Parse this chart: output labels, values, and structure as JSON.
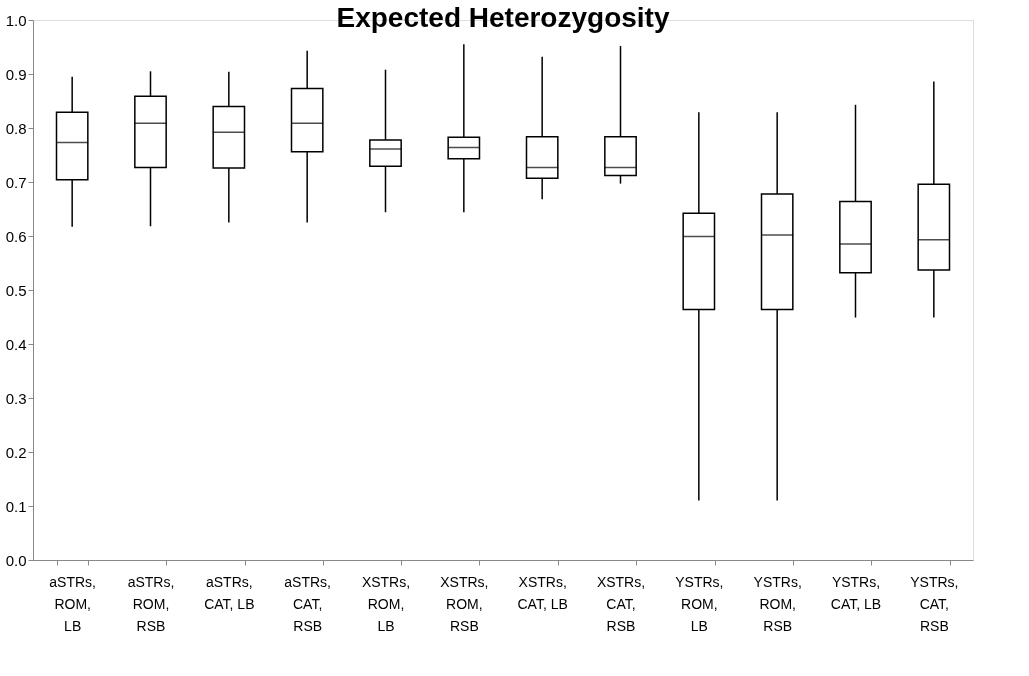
{
  "chart_data": {
    "type": "box",
    "title": "Expected Heterozygosity",
    "categories": [
      "aSTRs,\nROM,\nLB",
      "aSTRs,\nROM,\nRSB",
      "aSTRs,\nCAT, LB",
      "aSTRs,\nCAT,\nRSB",
      "XSTRs,\nROM,\nLB",
      "XSTRs,\nROM,\nRSB",
      "XSTRs,\nCAT, LB",
      "XSTRs,\nCAT,\nRSB",
      "YSTRs,\nROM,\nLB",
      "YSTRs,\nROM,\nRSB",
      "YSTRs,\nCAT, LB",
      "YSTRs,\nCAT,\nRSB"
    ],
    "series": [
      {
        "color": "#000000",
        "boxes": [
          {
            "low": 0.617,
            "q1": 0.704,
            "median": 0.773,
            "q3": 0.829,
            "high": 0.895
          },
          {
            "low": 0.618,
            "q1": 0.727,
            "median": 0.809,
            "q3": 0.859,
            "high": 0.905
          },
          {
            "low": 0.625,
            "q1": 0.726,
            "median": 0.792,
            "q3": 0.84,
            "high": 0.904
          },
          {
            "low": 0.625,
            "q1": 0.756,
            "median": 0.809,
            "q3": 0.873,
            "high": 0.943
          },
          {
            "low": 0.644,
            "q1": 0.729,
            "median": 0.761,
            "q3": 0.778,
            "high": 0.908
          },
          {
            "low": 0.644,
            "q1": 0.743,
            "median": 0.764,
            "q3": 0.783,
            "high": 0.955
          },
          {
            "low": 0.668,
            "q1": 0.707,
            "median": 0.727,
            "q3": 0.784,
            "high": 0.932
          },
          {
            "low": 0.697,
            "q1": 0.712,
            "median": 0.727,
            "q3": 0.784,
            "high": 0.952
          },
          {
            "low": 0.11,
            "q1": 0.464,
            "median": 0.599,
            "q3": 0.642,
            "high": 0.829
          },
          {
            "low": 0.11,
            "q1": 0.464,
            "median": 0.602,
            "q3": 0.678,
            "high": 0.829
          },
          {
            "low": 0.449,
            "q1": 0.532,
            "median": 0.585,
            "q3": 0.664,
            "high": 0.843
          },
          {
            "low": 0.449,
            "q1": 0.537,
            "median": 0.593,
            "q3": 0.696,
            "high": 0.886
          }
        ]
      }
    ],
    "ylim": [
      0,
      1
    ],
    "yticks": [
      {
        "value": 0,
        "label": "0.0"
      },
      0.1,
      0.2,
      0.3,
      0.4,
      0.5,
      0.6,
      0.7,
      0.8,
      0.9,
      {
        "value": 1,
        "label": "1.0"
      }
    ],
    "grid": false
  }
}
